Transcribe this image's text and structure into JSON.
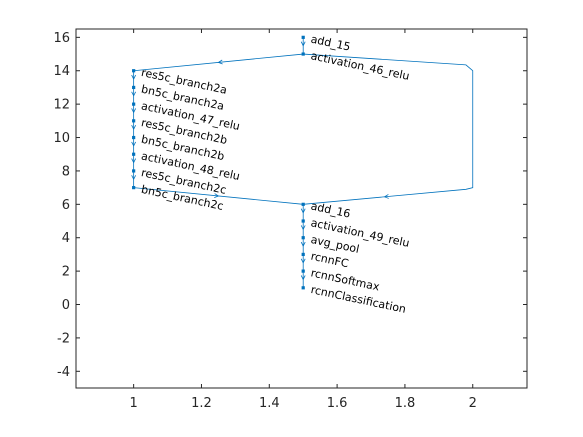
{
  "chart_data": {
    "type": "graph-plot",
    "title": "",
    "xlabel": "",
    "ylabel": "",
    "xlim": [
      0.83,
      2.16
    ],
    "ylim": [
      -5,
      16.5
    ],
    "xticks": [
      1,
      1.2,
      1.4,
      1.6,
      1.8,
      2
    ],
    "xtick_labels": [
      "1",
      "1.2",
      "1.4",
      "1.6",
      "1.8",
      "2"
    ],
    "yticks": [
      -4,
      -2,
      0,
      2,
      4,
      6,
      8,
      10,
      12,
      14,
      16
    ],
    "ytick_labels": [
      "-4",
      "-2",
      "0",
      "2",
      "4",
      "6",
      "8",
      "10",
      "12",
      "14",
      "16"
    ],
    "grid": false,
    "colors": {
      "edge": "#0072bd",
      "node": "#0072bd",
      "axis": "#262626"
    },
    "nodes": [
      {
        "id": "add_15",
        "label": "add_15",
        "x": 1.5,
        "y": 16
      },
      {
        "id": "activation_46_relu",
        "label": "activation_46_relu",
        "x": 1.5,
        "y": 15
      },
      {
        "id": "res5c_branch2a",
        "label": "res5c_branch2a",
        "x": 1.0,
        "y": 14
      },
      {
        "id": "bn5c_branch2a",
        "label": "bn5c_branch2a",
        "x": 1.0,
        "y": 13
      },
      {
        "id": "activation_47_relu",
        "label": "activation_47_relu",
        "x": 1.0,
        "y": 12
      },
      {
        "id": "res5c_branch2b",
        "label": "res5c_branch2b",
        "x": 1.0,
        "y": 11
      },
      {
        "id": "bn5c_branch2b",
        "label": "bn5c_branch2b",
        "x": 1.0,
        "y": 10
      },
      {
        "id": "activation_48_relu",
        "label": "activation_48_relu",
        "x": 1.0,
        "y": 9
      },
      {
        "id": "res5c_branch2c",
        "label": "res5c_branch2c",
        "x": 1.0,
        "y": 8
      },
      {
        "id": "bn5c_branch2c",
        "label": "bn5c_branch2c",
        "x": 1.0,
        "y": 7
      },
      {
        "id": "add_16",
        "label": "add_16",
        "x": 1.5,
        "y": 6
      },
      {
        "id": "activation_49_relu",
        "label": "activation_49_relu",
        "x": 1.5,
        "y": 5
      },
      {
        "id": "avg_pool",
        "label": "avg_pool",
        "x": 1.5,
        "y": 4
      },
      {
        "id": "rcnnFC",
        "label": "rcnnFC",
        "x": 1.5,
        "y": 3
      },
      {
        "id": "rcnnSoftmax",
        "label": "rcnnSoftmax",
        "x": 1.5,
        "y": 2
      },
      {
        "id": "rcnnClassification",
        "label": "rcnnClassification",
        "x": 1.5,
        "y": 1
      }
    ],
    "edges": [
      {
        "from": "add_15",
        "to": "activation_46_relu"
      },
      {
        "from": "activation_46_relu",
        "to": "res5c_branch2a"
      },
      {
        "from": "res5c_branch2a",
        "to": "bn5c_branch2a"
      },
      {
        "from": "bn5c_branch2a",
        "to": "activation_47_relu"
      },
      {
        "from": "activation_47_relu",
        "to": "res5c_branch2b"
      },
      {
        "from": "res5c_branch2b",
        "to": "bn5c_branch2b"
      },
      {
        "from": "bn5c_branch2b",
        "to": "activation_48_relu"
      },
      {
        "from": "activation_48_relu",
        "to": "res5c_branch2c"
      },
      {
        "from": "res5c_branch2c",
        "to": "bn5c_branch2c"
      },
      {
        "from": "bn5c_branch2c",
        "to": "add_16"
      },
      {
        "from": "activation_46_relu",
        "to": "add_16",
        "via": [
          [
            1.98,
            14.35
          ],
          [
            2.0,
            14.0
          ],
          [
            2.0,
            7.0
          ],
          [
            1.98,
            6.9
          ]
        ]
      },
      {
        "from": "add_16",
        "to": "activation_49_relu"
      },
      {
        "from": "activation_49_relu",
        "to": "avg_pool"
      },
      {
        "from": "avg_pool",
        "to": "rcnnFC"
      },
      {
        "from": "rcnnFC",
        "to": "rcnnSoftmax"
      },
      {
        "from": "rcnnSoftmax",
        "to": "rcnnClassification"
      }
    ]
  }
}
